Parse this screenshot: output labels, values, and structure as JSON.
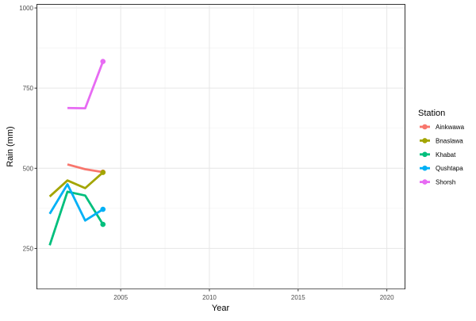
{
  "chart_data": {
    "type": "line",
    "title": "",
    "xlabel": "Year",
    "ylabel": "Rain (mm)",
    "xlim": [
      2000.3,
      2021.0
    ],
    "ylim": [
      125,
      1010
    ],
    "x_ticks": [
      2005,
      2010,
      2015,
      2020
    ],
    "y_ticks": [
      250,
      500,
      750,
      1000
    ],
    "grid": true,
    "legend": {
      "title": "Station",
      "position": "right"
    },
    "series": [
      {
        "name": "Ainkwawa",
        "color": "#F8766D",
        "x": [
          2002,
          2003,
          2004
        ],
        "y": [
          512,
          497,
          488
        ]
      },
      {
        "name": "Bnaslawa",
        "color": "#A3A500",
        "x": [
          2001,
          2002,
          2003,
          2004
        ],
        "y": [
          412,
          462,
          438,
          487
        ]
      },
      {
        "name": "Khabat",
        "color": "#00BF7D",
        "x": [
          2001,
          2002,
          2003,
          2004
        ],
        "y": [
          260,
          427,
          415,
          325
        ]
      },
      {
        "name": "Qushtapa",
        "color": "#00B0F6",
        "x": [
          2001,
          2002,
          2003,
          2004
        ],
        "y": [
          358,
          450,
          337,
          372
        ]
      },
      {
        "name": "Shorsh",
        "color": "#E76BF3",
        "x": [
          2002,
          2003,
          2004
        ],
        "y": [
          688,
          687,
          833
        ]
      }
    ]
  }
}
